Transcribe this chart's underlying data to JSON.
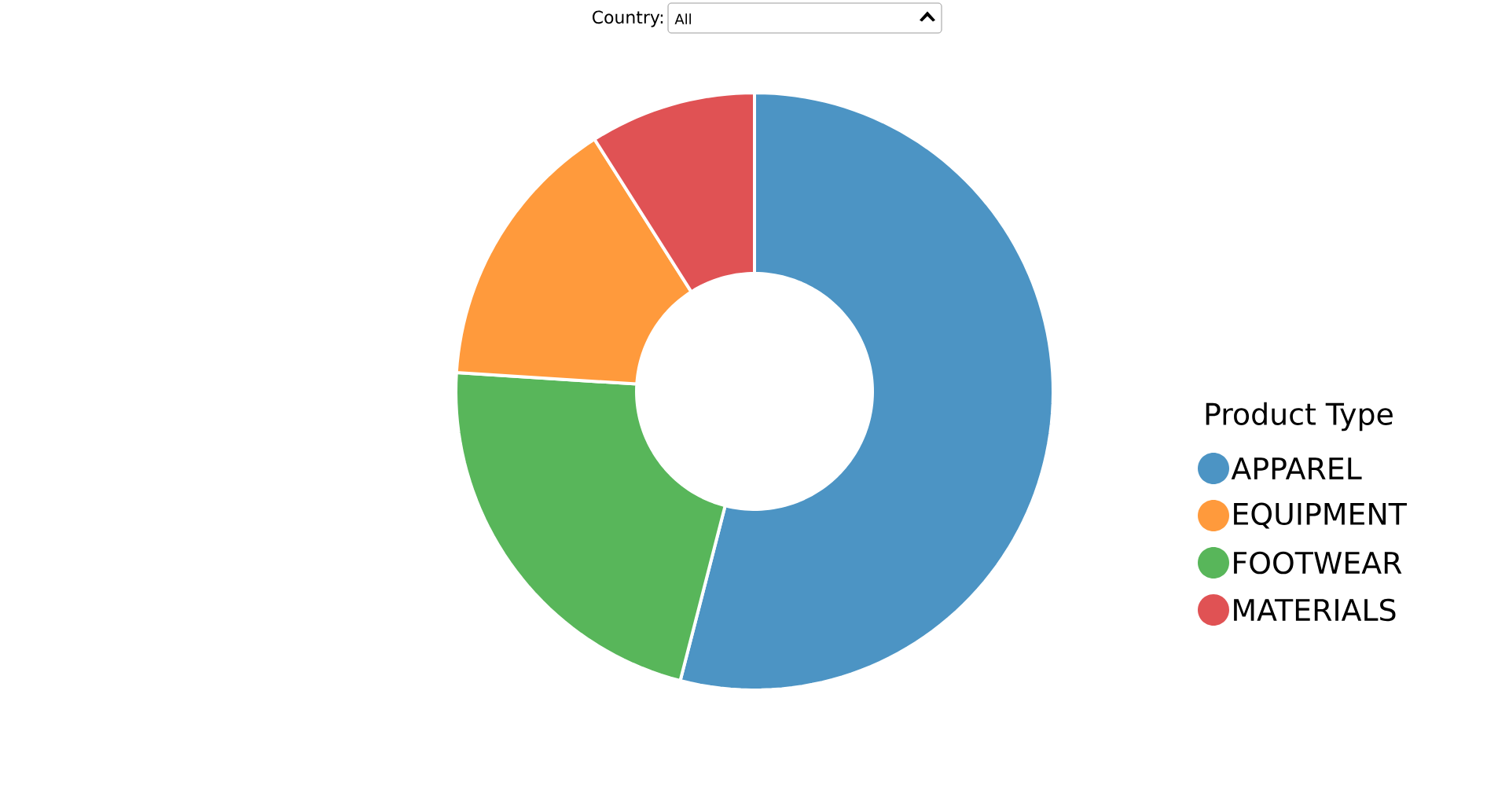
{
  "chart_data": {
    "type": "donut",
    "categories": [
      "APPAREL",
      "EQUIPMENT",
      "FOOTWEAR",
      "MATERIALS"
    ],
    "values": [
      54,
      15,
      22,
      9
    ],
    "colors": [
      "#4c94c4",
      "#ff9a3c",
      "#58b65a",
      "#e05254"
    ],
    "legend_title": "Product Type",
    "legend": "right",
    "annotations": [
      "Country:",
      "All"
    ]
  }
}
